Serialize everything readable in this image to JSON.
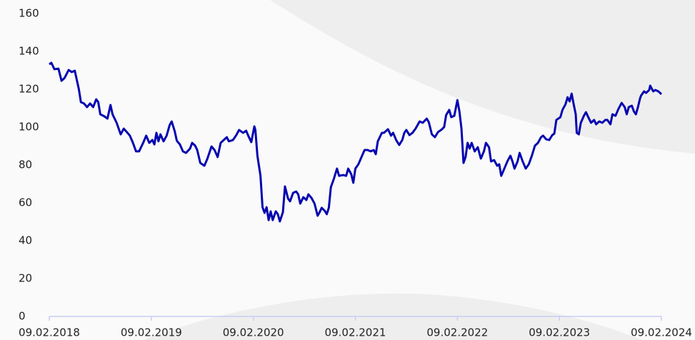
{
  "chart_data": {
    "type": "line",
    "x": [
      2018.11,
      2018.13,
      2018.16,
      2018.2,
      2018.23,
      2018.26,
      2018.3,
      2018.33,
      2018.36,
      2018.4,
      2018.42,
      2018.45,
      2018.48,
      2018.51,
      2018.54,
      2018.57,
      2018.59,
      2018.61,
      2018.65,
      2018.68,
      2018.71,
      2018.73,
      2018.77,
      2018.81,
      2018.84,
      2018.87,
      2018.9,
      2018.93,
      2018.96,
      2018.99,
      2019.03,
      2019.06,
      2019.09,
      2019.12,
      2019.14,
      2019.16,
      2019.18,
      2019.2,
      2019.23,
      2019.26,
      2019.29,
      2019.31,
      2019.34,
      2019.36,
      2019.39,
      2019.42,
      2019.45,
      2019.49,
      2019.51,
      2019.54,
      2019.56,
      2019.59,
      2019.63,
      2019.66,
      2019.7,
      2019.73,
      2019.76,
      2019.79,
      2019.82,
      2019.85,
      2019.87,
      2019.91,
      2019.94,
      2019.97,
      2020.01,
      2020.04,
      2020.06,
      2020.09,
      2020.12,
      2020.13,
      2020.15,
      2020.18,
      2020.2,
      2020.22,
      2020.24,
      2020.26,
      2020.28,
      2020.3,
      2020.33,
      2020.35,
      2020.37,
      2020.4,
      2020.42,
      2020.45,
      2020.47,
      2020.5,
      2020.53,
      2020.55,
      2020.57,
      2020.6,
      2020.63,
      2020.65,
      2020.68,
      2020.71,
      2020.74,
      2020.76,
      2020.78,
      2020.81,
      2020.83,
      2020.85,
      2020.87,
      2020.9,
      2020.93,
      2020.95,
      2020.99,
      2021.02,
      2021.04,
      2021.07,
      2021.09,
      2021.11,
      2021.14,
      2021.17,
      2021.2,
      2021.23,
      2021.26,
      2021.29,
      2021.31,
      2021.33,
      2021.37,
      2021.39,
      2021.43,
      2021.46,
      2021.48,
      2021.51,
      2021.54,
      2021.57,
      2021.59,
      2021.61,
      2021.64,
      2021.67,
      2021.7,
      2021.74,
      2021.77,
      2021.81,
      2021.83,
      2021.86,
      2021.89,
      2021.92,
      2021.95,
      2021.98,
      2022.0,
      2022.03,
      2022.05,
      2022.08,
      2022.11,
      2022.13,
      2022.15,
      2022.17,
      2022.19,
      2022.21,
      2022.23,
      2022.25,
      2022.28,
      2022.31,
      2022.34,
      2022.37,
      2022.39,
      2022.42,
      2022.44,
      2022.47,
      2022.5,
      2022.52,
      2022.54,
      2022.57,
      2022.6,
      2022.63,
      2022.65,
      2022.67,
      2022.7,
      2022.72,
      2022.75,
      2022.78,
      2022.81,
      2022.84,
      2022.87,
      2022.9,
      2022.93,
      2022.95,
      2022.98,
      2023.01,
      2023.04,
      2023.06,
      2023.08,
      2023.12,
      2023.14,
      2023.17,
      2023.19,
      2023.21,
      2023.23,
      2023.25,
      2023.27,
      2023.28,
      2023.3,
      2023.32,
      2023.35,
      2023.37,
      2023.4,
      2023.42,
      2023.45,
      2023.47,
      2023.5,
      2023.53,
      2023.56,
      2023.58,
      2023.61,
      2023.63,
      2023.66,
      2023.69,
      2023.72,
      2023.75,
      2023.77,
      2023.79,
      2023.82,
      2023.84,
      2023.86,
      2023.88,
      2023.9,
      2023.91,
      2023.94,
      2023.96,
      2023.99,
      2024.0,
      2024.03,
      2024.05,
      2024.08,
      2024.11
    ],
    "values": [
      133.2,
      134.0,
      130.6,
      130.9,
      124.5,
      126.0,
      130.2,
      129.1,
      129.8,
      120.0,
      113.2,
      112.5,
      110.6,
      112.5,
      110.6,
      114.7,
      113.2,
      106.8,
      105.7,
      104.5,
      111.7,
      106.8,
      102.3,
      96.2,
      99.2,
      97.4,
      95.5,
      91.7,
      87.2,
      87.2,
      91.7,
      95.5,
      91.7,
      93.2,
      90.9,
      97.0,
      92.5,
      96.2,
      92.5,
      95.5,
      101.1,
      103.0,
      97.7,
      92.8,
      90.9,
      87.2,
      86.4,
      88.7,
      91.7,
      90.2,
      87.9,
      81.1,
      79.6,
      83.4,
      89.8,
      87.9,
      84.2,
      91.7,
      93.2,
      94.7,
      92.5,
      93.2,
      95.5,
      98.5,
      97.0,
      98.1,
      95.5,
      92.1,
      100.4,
      98.5,
      84.9,
      74.3,
      57.7,
      54.7,
      57.7,
      50.9,
      55.5,
      50.9,
      55.5,
      54.0,
      50.2,
      55.1,
      68.7,
      62.3,
      60.8,
      65.3,
      66.0,
      64.5,
      59.6,
      63.0,
      61.5,
      64.5,
      62.6,
      59.6,
      53.2,
      55.1,
      57.4,
      55.8,
      54.0,
      57.4,
      68.3,
      72.8,
      78.1,
      74.3,
      74.7,
      74.3,
      78.1,
      75.1,
      70.6,
      78.1,
      80.4,
      84.2,
      87.9,
      87.9,
      87.2,
      87.9,
      85.7,
      92.5,
      97.0,
      97.0,
      98.9,
      95.5,
      97.0,
      93.2,
      90.6,
      93.2,
      97.0,
      98.5,
      95.8,
      97.0,
      99.2,
      103.0,
      102.3,
      104.5,
      102.6,
      96.2,
      94.7,
      97.4,
      98.5,
      100.0,
      106.4,
      109.1,
      105.3,
      106.0,
      114.3,
      108.3,
      99.2,
      81.1,
      84.2,
      91.7,
      88.7,
      91.7,
      87.2,
      89.4,
      83.4,
      87.2,
      91.7,
      89.4,
      81.9,
      82.6,
      79.6,
      80.4,
      74.3,
      78.1,
      81.9,
      84.9,
      81.9,
      78.1,
      81.9,
      86.4,
      81.9,
      78.1,
      80.4,
      84.9,
      90.2,
      91.7,
      94.7,
      95.5,
      93.6,
      93.2,
      95.8,
      96.6,
      103.8,
      105.3,
      109.1,
      112.1,
      115.8,
      113.6,
      117.7,
      112.1,
      106.8,
      97.0,
      96.2,
      102.3,
      106.0,
      107.9,
      104.5,
      102.3,
      103.8,
      101.5,
      103.0,
      102.3,
      103.8,
      103.8,
      101.5,
      106.8,
      106.0,
      109.8,
      112.8,
      110.6,
      106.8,
      110.6,
      111.3,
      108.3,
      106.8,
      110.6,
      115.1,
      116.6,
      118.9,
      118.1,
      119.6,
      121.9,
      118.9,
      119.6,
      118.9,
      117.4
    ],
    "color": "#0505b0",
    "xlim": [
      2018.11,
      2024.11
    ],
    "xticks": [
      {
        "value": 2018.11,
        "label": "09.02.2018"
      },
      {
        "value": 2019.11,
        "label": "09.02.2019"
      },
      {
        "value": 2020.11,
        "label": "09.02.2020"
      },
      {
        "value": 2021.11,
        "label": "09.02.2021"
      },
      {
        "value": 2022.11,
        "label": "09.02.2022"
      },
      {
        "value": 2023.11,
        "label": "09.02.2023"
      },
      {
        "value": 2024.11,
        "label": "09.02.2024"
      }
    ],
    "ylim": [
      0,
      160
    ],
    "yticks": [
      0,
      20,
      40,
      60,
      80,
      100,
      120,
      140,
      160
    ],
    "grid": false
  }
}
